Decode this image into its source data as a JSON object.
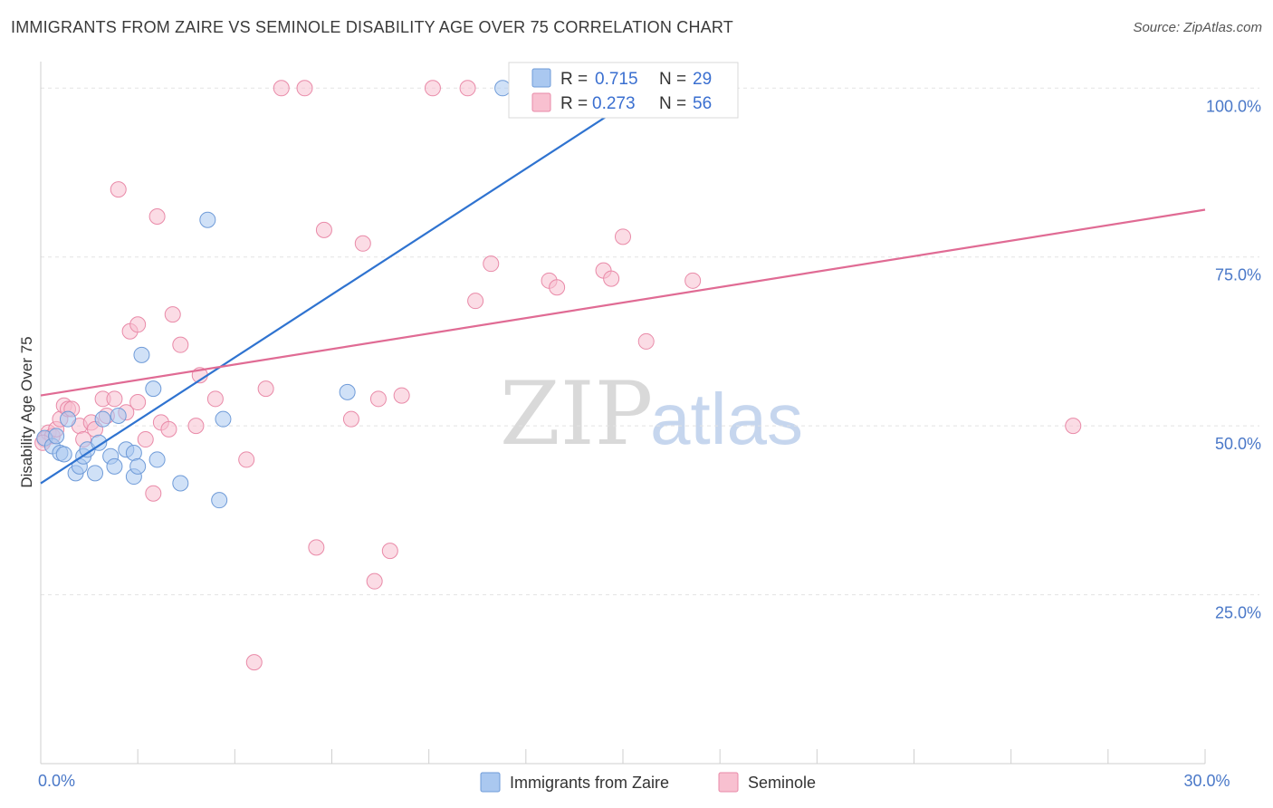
{
  "title": "IMMIGRANTS FROM ZAIRE VS SEMINOLE DISABILITY AGE OVER 75 CORRELATION CHART",
  "source": "Source: ZipAtlas.com",
  "watermark": {
    "zip": "ZIP",
    "atlas": "atlas"
  },
  "colors": {
    "blue_fill": "#aac8f0",
    "blue_stroke": "#6f9bd8",
    "blue_line": "#2f73d0",
    "pink_fill": "#f8c0d0",
    "pink_stroke": "#e98aa8",
    "pink_line": "#e06b94",
    "tick_text": "#4a78c8",
    "grid": "#e3e3e3"
  },
  "legend": {
    "r_label": "R =",
    "n_label": "N =",
    "series": [
      {
        "r": "0.715",
        "n": "29"
      },
      {
        "r": "0.273",
        "n": "56"
      }
    ]
  },
  "chart_data": {
    "type": "scatter",
    "title": "IMMIGRANTS FROM ZAIRE VS SEMINOLE DISABILITY AGE OVER 75 CORRELATION CHART",
    "xlabel": "",
    "ylabel": "Disability Age Over 75",
    "xlim": [
      0,
      30
    ],
    "ylim": [
      0,
      105
    ],
    "x_tick_labels": [
      "0.0%",
      "30.0%"
    ],
    "y_ticks": [
      25,
      50,
      75,
      100
    ],
    "y_tick_labels": [
      "25.0%",
      "50.0%",
      "75.0%",
      "100.0%"
    ],
    "grid": true,
    "series": [
      {
        "name": "Immigrants from Zaire",
        "color": "blue",
        "points": [
          [
            0.1,
            48.2
          ],
          [
            0.3,
            47.0
          ],
          [
            0.4,
            48.5
          ],
          [
            0.5,
            46.0
          ],
          [
            0.6,
            45.8
          ],
          [
            0.7,
            51.0
          ],
          [
            0.9,
            43.0
          ],
          [
            1.0,
            44.0
          ],
          [
            1.1,
            45.5
          ],
          [
            1.2,
            46.5
          ],
          [
            1.4,
            43.0
          ],
          [
            1.5,
            47.5
          ],
          [
            1.6,
            51.0
          ],
          [
            1.8,
            45.5
          ],
          [
            1.9,
            44.0
          ],
          [
            2.0,
            51.5
          ],
          [
            2.2,
            46.5
          ],
          [
            2.4,
            46.0
          ],
          [
            2.4,
            42.5
          ],
          [
            2.5,
            44.0
          ],
          [
            2.6,
            60.5
          ],
          [
            2.9,
            55.5
          ],
          [
            3.0,
            45.0
          ],
          [
            3.6,
            41.5
          ],
          [
            4.3,
            80.5
          ],
          [
            4.6,
            39.0
          ],
          [
            4.7,
            51.0
          ],
          [
            7.9,
            55.0
          ],
          [
            11.9,
            100.0
          ]
        ],
        "trend": {
          "x": [
            0.0,
            15.3
          ],
          "y": [
            41.5,
            98.5
          ]
        }
      },
      {
        "name": "Seminole",
        "color": "pink",
        "points": [
          [
            0.1,
            48.0
          ],
          [
            0.2,
            49.0
          ],
          [
            0.3,
            48.5
          ],
          [
            0.4,
            49.5
          ],
          [
            0.5,
            51.0
          ],
          [
            0.6,
            53.0
          ],
          [
            0.7,
            52.5
          ],
          [
            0.8,
            52.5
          ],
          [
            1.0,
            50.0
          ],
          [
            1.1,
            48.0
          ],
          [
            1.3,
            50.5
          ],
          [
            1.4,
            49.5
          ],
          [
            1.6,
            54.0
          ],
          [
            1.7,
            51.5
          ],
          [
            1.9,
            54.0
          ],
          [
            2.0,
            85.0
          ],
          [
            2.2,
            52.0
          ],
          [
            2.3,
            64.0
          ],
          [
            2.5,
            53.5
          ],
          [
            2.5,
            65.0
          ],
          [
            2.7,
            48.0
          ],
          [
            2.9,
            40.0
          ],
          [
            3.0,
            81.0
          ],
          [
            3.1,
            50.5
          ],
          [
            3.3,
            49.5
          ],
          [
            3.4,
            66.5
          ],
          [
            3.6,
            62.0
          ],
          [
            4.0,
            50.0
          ],
          [
            4.1,
            57.5
          ],
          [
            4.5,
            54.0
          ],
          [
            5.3,
            45.0
          ],
          [
            5.5,
            15.0
          ],
          [
            5.8,
            55.5
          ],
          [
            6.2,
            100.0
          ],
          [
            6.8,
            100.0
          ],
          [
            7.1,
            32.0
          ],
          [
            7.3,
            79.0
          ],
          [
            8.0,
            51.0
          ],
          [
            8.3,
            77.0
          ],
          [
            8.6,
            27.0
          ],
          [
            8.7,
            54.0
          ],
          [
            9.0,
            31.5
          ],
          [
            9.3,
            54.5
          ],
          [
            10.1,
            100.0
          ],
          [
            11.0,
            100.0
          ],
          [
            11.2,
            68.5
          ],
          [
            11.6,
            74.0
          ],
          [
            13.1,
            71.5
          ],
          [
            13.3,
            70.5
          ],
          [
            14.5,
            73.0
          ],
          [
            14.7,
            71.8
          ],
          [
            15.0,
            78.0
          ],
          [
            15.6,
            62.5
          ],
          [
            16.8,
            71.5
          ],
          [
            26.6,
            50.0
          ],
          [
            0.05,
            47.5
          ]
        ],
        "trend": {
          "x": [
            0.0,
            30.0
          ],
          "y": [
            54.5,
            82.0
          ]
        }
      }
    ],
    "legend_position": "bottom-center"
  }
}
